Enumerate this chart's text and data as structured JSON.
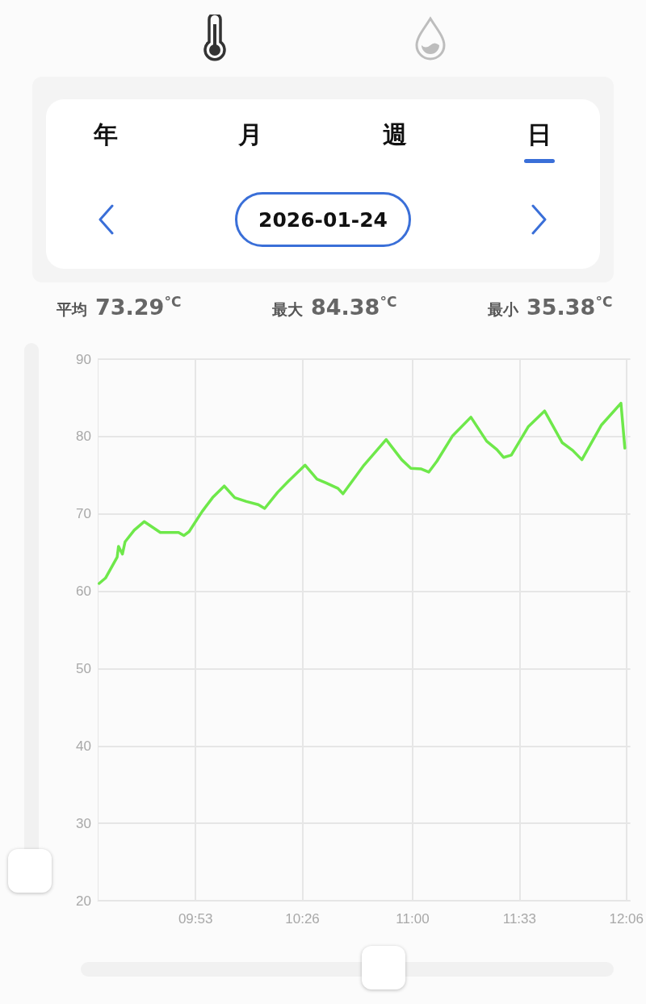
{
  "chart_data": {
    "type": "line",
    "annotations": [
      "年",
      "月",
      "週",
      "日",
      "2026-01-24",
      "平均 73.29$^{°C}$",
      "最大 84.38$^{°C}$",
      "最小 35.38$^{°C}$"
    ],
    "x": [
      9.387,
      9.42,
      9.48,
      9.487,
      9.507,
      9.521,
      9.568,
      9.619,
      9.702,
      9.796,
      9.823,
      9.85,
      9.917,
      9.971,
      10.031,
      10.085,
      10.145,
      10.206,
      10.239,
      10.306,
      10.36,
      10.447,
      10.508,
      10.555,
      10.616,
      10.642,
      10.75,
      10.864,
      10.944,
      10.991,
      11.045,
      11.083,
      11.125,
      11.206,
      11.3,
      11.381,
      11.434,
      11.468,
      11.508,
      11.596,
      11.679,
      11.77,
      11.824,
      11.871,
      11.972,
      12.072,
      12.092
    ],
    "series": [
      {
        "color": "#6ee84a",
        "values": [
          61.0,
          61.7,
          64.4,
          65.8,
          64.8,
          66.4,
          67.9,
          69.0,
          67.6,
          67.6,
          67.2,
          67.7,
          70.3,
          72.1,
          73.6,
          72.1,
          71.6,
          71.2,
          70.7,
          72.8,
          74.2,
          76.3,
          74.5,
          74.0,
          73.3,
          72.6,
          76.3,
          79.6,
          77.0,
          75.9,
          75.8,
          75.4,
          76.8,
          80.1,
          82.5,
          79.4,
          78.3,
          77.3,
          77.6,
          81.3,
          83.3,
          79.2,
          78.2,
          77.0,
          81.5,
          84.3,
          78.5
        ]
      }
    ],
    "xlim": [
      9.38,
      12.12
    ],
    "xticks": [
      {
        "value": 9.8833,
        "label": "09:53"
      },
      {
        "value": 10.4333,
        "label": "10:26"
      },
      {
        "value": 11.0,
        "label": "11:00"
      },
      {
        "value": 11.55,
        "label": "11:33"
      },
      {
        "value": 12.1,
        "label": "12:06"
      }
    ],
    "ylim": [
      20,
      90
    ],
    "yticks": [
      20,
      30,
      40,
      50,
      60,
      70,
      80,
      90
    ],
    "grid": true
  }
}
